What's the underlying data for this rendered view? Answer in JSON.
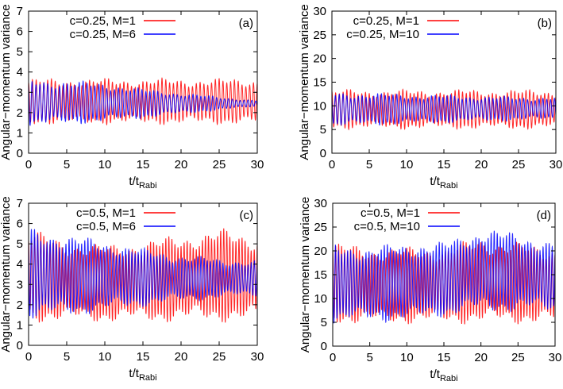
{
  "chart_data": [
    {
      "type": "line",
      "panel_label": "(a)",
      "xlabel": "t/t",
      "xlabel_sub": "Rabi",
      "ylabel": "Angular−momentum variance",
      "xlim": [
        0,
        30
      ],
      "ylim": [
        0,
        7
      ],
      "xticks": [
        0,
        5,
        10,
        15,
        20,
        25,
        30
      ],
      "yticks": [
        0,
        1,
        2,
        3,
        4,
        5,
        6,
        7
      ],
      "legend_position": "top-left",
      "oscillation_period": 0.5,
      "envelope_x": [
        0,
        5,
        10,
        15,
        20,
        25,
        30
      ],
      "series": [
        {
          "name": "c=0.25, M=1",
          "color": "#ff0000",
          "upper": [
            3.7,
            3.7,
            3.7,
            3.7,
            3.7,
            3.7,
            3.7
          ],
          "lower": [
            1.4,
            1.4,
            1.4,
            1.4,
            1.4,
            1.4,
            1.4
          ]
        },
        {
          "name": "c=0.25, M=6",
          "color": "#0000ff",
          "upper": [
            3.7,
            3.6,
            3.5,
            3.2,
            3.0,
            2.8,
            2.6
          ],
          "lower": [
            1.3,
            1.4,
            1.5,
            1.7,
            1.9,
            2.1,
            2.3
          ]
        }
      ]
    },
    {
      "type": "line",
      "panel_label": "(b)",
      "xlabel": "t/t",
      "xlabel_sub": "Rabi",
      "ylabel": "Angular−momentum variance",
      "xlim": [
        0,
        30
      ],
      "ylim": [
        0,
        30
      ],
      "xticks": [
        0,
        5,
        10,
        15,
        20,
        25,
        30
      ],
      "yticks": [
        0,
        5,
        10,
        15,
        20,
        25,
        30
      ],
      "legend_position": "top-left",
      "oscillation_period": 0.5,
      "envelope_x": [
        0,
        5,
        10,
        15,
        20,
        25,
        30
      ],
      "series": [
        {
          "name": "c=0.25, M=1",
          "color": "#ff0000",
          "upper": [
            13.5,
            13.5,
            13.5,
            13.5,
            13.5,
            13.5,
            13.5
          ],
          "lower": [
            5,
            5,
            5,
            5,
            5,
            5,
            5
          ]
        },
        {
          "name": "c=0.25, M=10",
          "color": "#0000ff",
          "upper": [
            13,
            12.8,
            12.6,
            12.4,
            12.2,
            12,
            12
          ],
          "lower": [
            5.5,
            5.8,
            6,
            6.3,
            6.6,
            6.8,
            7
          ]
        }
      ]
    },
    {
      "type": "line",
      "panel_label": "(c)",
      "xlabel": "t/t",
      "xlabel_sub": "Rabi",
      "ylabel": "Angular−momentum variance",
      "xlim": [
        0,
        30
      ],
      "ylim": [
        0,
        7
      ],
      "xticks": [
        0,
        5,
        10,
        15,
        20,
        25,
        30
      ],
      "yticks": [
        0,
        1,
        2,
        3,
        4,
        5,
        6,
        7
      ],
      "legend_position": "top-left",
      "oscillation_period": 0.4,
      "envelope_x": [
        0,
        5,
        10,
        15,
        20,
        25,
        30
      ],
      "series": [
        {
          "name": "c=0.5, M=1",
          "color": "#ff0000",
          "upper": [
            5.8,
            5.2,
            5.0,
            5.2,
            5.5,
            5.8,
            5.5
          ],
          "lower": [
            1.1,
            1.1,
            1.1,
            1.1,
            1.1,
            1.1,
            1.1
          ]
        },
        {
          "name": "c=0.5, M=6",
          "color": "#0000ff",
          "upper": [
            5.9,
            5.5,
            5.2,
            4.8,
            4.5,
            4.3,
            4.2
          ],
          "lower": [
            1.2,
            1.4,
            1.6,
            1.9,
            2.1,
            2.3,
            2.4
          ]
        }
      ]
    },
    {
      "type": "line",
      "panel_label": "(d)",
      "xlabel": "t/t",
      "xlabel_sub": "Rabi",
      "ylabel": "Angular−momentum variance",
      "xlim": [
        0,
        30
      ],
      "ylim": [
        0,
        30
      ],
      "xticks": [
        0,
        5,
        10,
        15,
        20,
        25,
        30
      ],
      "yticks": [
        0,
        5,
        10,
        15,
        20,
        25,
        30
      ],
      "legend_position": "top-left",
      "oscillation_period": 0.4,
      "envelope_x": [
        0,
        5,
        10,
        15,
        20,
        25,
        30
      ],
      "series": [
        {
          "name": "c=0.5, M=1",
          "color": "#ff0000",
          "upper": [
            22,
            21,
            21,
            21,
            23,
            22,
            21
          ],
          "lower": [
            4.5,
            4.5,
            4.5,
            4.5,
            4.5,
            4.5,
            4.5
          ]
        },
        {
          "name": "c=0.5, M=10",
          "color": "#0000ff",
          "upper": [
            22,
            21,
            22,
            22,
            25,
            24,
            22
          ],
          "lower": [
            4.5,
            5,
            5,
            6,
            7,
            7,
            7
          ]
        }
      ]
    }
  ]
}
